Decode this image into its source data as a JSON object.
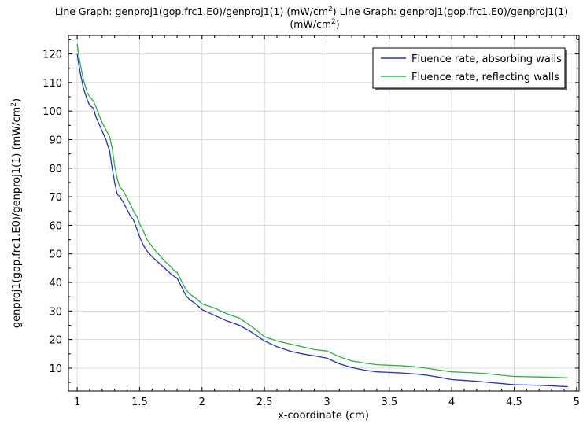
{
  "title": {
    "line1_a": "Line Graph: genproj1(gop.frc1.E0)/genproj1(1) (mW/cm",
    "line1_a_sup": "2",
    "line1_b": ")  Line Graph: genproj1(gop.frc1.E0)/genproj1(1)",
    "line2_a": "(mW/cm",
    "line2_sup": "2",
    "line2_b": ")"
  },
  "axes": {
    "ylabel_a": "genproj1(gop.frc1.E0)/genproj1(1) (mW/cm",
    "ylabel_sup": "2",
    "ylabel_b": ")"
  },
  "legend": {
    "placement": "top-right"
  },
  "colors": {
    "absorbing": "#1f2fd6",
    "reflecting": "#22b63c",
    "grid": "#d9d9d9",
    "axis": "#000000"
  },
  "chart_data": {
    "type": "line",
    "xlabel": "x-coordinate (cm)",
    "ylabel": "genproj1(gop.frc1.E0)/genproj1(1) (mW/cm2)",
    "xlim": [
      0.93,
      5.02
    ],
    "ylim": [
      2.0,
      126.5
    ],
    "grid": true,
    "legend_placement": "top-right",
    "xticks": [
      1,
      1.5,
      2,
      2.5,
      3,
      3.5,
      4,
      4.5,
      5
    ],
    "xtick_labels": [
      "1",
      "1.5",
      "2",
      "2.5",
      "3",
      "3.5",
      "4",
      "4.5",
      "5"
    ],
    "yticks": [
      10,
      20,
      30,
      40,
      50,
      60,
      70,
      80,
      90,
      100,
      110,
      120
    ],
    "ytick_labels": [
      "10",
      "20",
      "30",
      "40",
      "50",
      "60",
      "70",
      "80",
      "90",
      "100",
      "110",
      "120"
    ],
    "series": [
      {
        "name": "Fluence rate, absorbing walls",
        "x": [
          1.0,
          1.02,
          1.05,
          1.08,
          1.1,
          1.13,
          1.15,
          1.18,
          1.2,
          1.23,
          1.26,
          1.28,
          1.3,
          1.32,
          1.34,
          1.37,
          1.4,
          1.43,
          1.45,
          1.48,
          1.5,
          1.53,
          1.56,
          1.6,
          1.65,
          1.7,
          1.75,
          1.78,
          1.8,
          1.83,
          1.87,
          1.9,
          1.95,
          2.0,
          2.1,
          2.2,
          2.3,
          2.4,
          2.5,
          2.6,
          2.7,
          2.8,
          2.9,
          3.0,
          3.05,
          3.1,
          3.2,
          3.3,
          3.4,
          3.5,
          3.6,
          3.7,
          3.8,
          3.9,
          4.0,
          4.1,
          4.2,
          4.3,
          4.4,
          4.5,
          4.6,
          4.7,
          4.8,
          4.93
        ],
        "y": [
          120.0,
          114.5,
          108.0,
          104.0,
          102.0,
          101.0,
          98.0,
          95.0,
          93.0,
          90.0,
          86.0,
          80.0,
          75.0,
          71.0,
          70.0,
          68.0,
          65.5,
          63.0,
          62.0,
          58.5,
          56.0,
          53.0,
          51.0,
          49.0,
          47.0,
          45.0,
          43.0,
          42.0,
          41.5,
          39.0,
          35.5,
          34.0,
          32.5,
          30.5,
          28.5,
          26.5,
          25.0,
          22.5,
          19.5,
          17.5,
          16.0,
          15.0,
          14.3,
          13.5,
          12.5,
          11.5,
          10.2,
          9.3,
          8.7,
          8.5,
          8.3,
          8.0,
          7.5,
          6.8,
          6.0,
          5.7,
          5.4,
          5.0,
          4.6,
          4.2,
          4.1,
          4.0,
          3.8,
          3.5
        ]
      },
      {
        "name": "Fluence rate, reflecting walls",
        "x": [
          1.0,
          1.02,
          1.05,
          1.08,
          1.1,
          1.13,
          1.15,
          1.18,
          1.2,
          1.23,
          1.26,
          1.28,
          1.3,
          1.32,
          1.34,
          1.37,
          1.4,
          1.43,
          1.45,
          1.48,
          1.5,
          1.53,
          1.56,
          1.6,
          1.65,
          1.7,
          1.75,
          1.78,
          1.8,
          1.83,
          1.87,
          1.9,
          1.95,
          2.0,
          2.1,
          2.2,
          2.3,
          2.4,
          2.5,
          2.6,
          2.7,
          2.8,
          2.9,
          3.0,
          3.05,
          3.1,
          3.2,
          3.3,
          3.4,
          3.5,
          3.6,
          3.7,
          3.8,
          3.9,
          4.0,
          4.1,
          4.2,
          4.3,
          4.4,
          4.5,
          4.6,
          4.7,
          4.8,
          4.93
        ],
        "y": [
          123.5,
          117.5,
          111.0,
          106.5,
          105.0,
          103.5,
          101.5,
          98.0,
          96.0,
          93.5,
          91.0,
          87.0,
          81.0,
          76.5,
          73.5,
          72.0,
          69.5,
          67.0,
          65.0,
          63.0,
          60.5,
          58.0,
          55.0,
          52.5,
          50.0,
          47.5,
          45.5,
          44.0,
          43.5,
          41.0,
          37.5,
          36.0,
          34.5,
          32.5,
          31.0,
          29.0,
          27.5,
          24.5,
          21.0,
          19.5,
          18.5,
          17.5,
          16.5,
          16.0,
          15.0,
          14.0,
          12.5,
          11.8,
          11.2,
          11.0,
          10.8,
          10.5,
          10.0,
          9.3,
          8.7,
          8.5,
          8.3,
          8.0,
          7.5,
          7.1,
          7.0,
          6.9,
          6.8,
          6.6
        ]
      }
    ]
  }
}
